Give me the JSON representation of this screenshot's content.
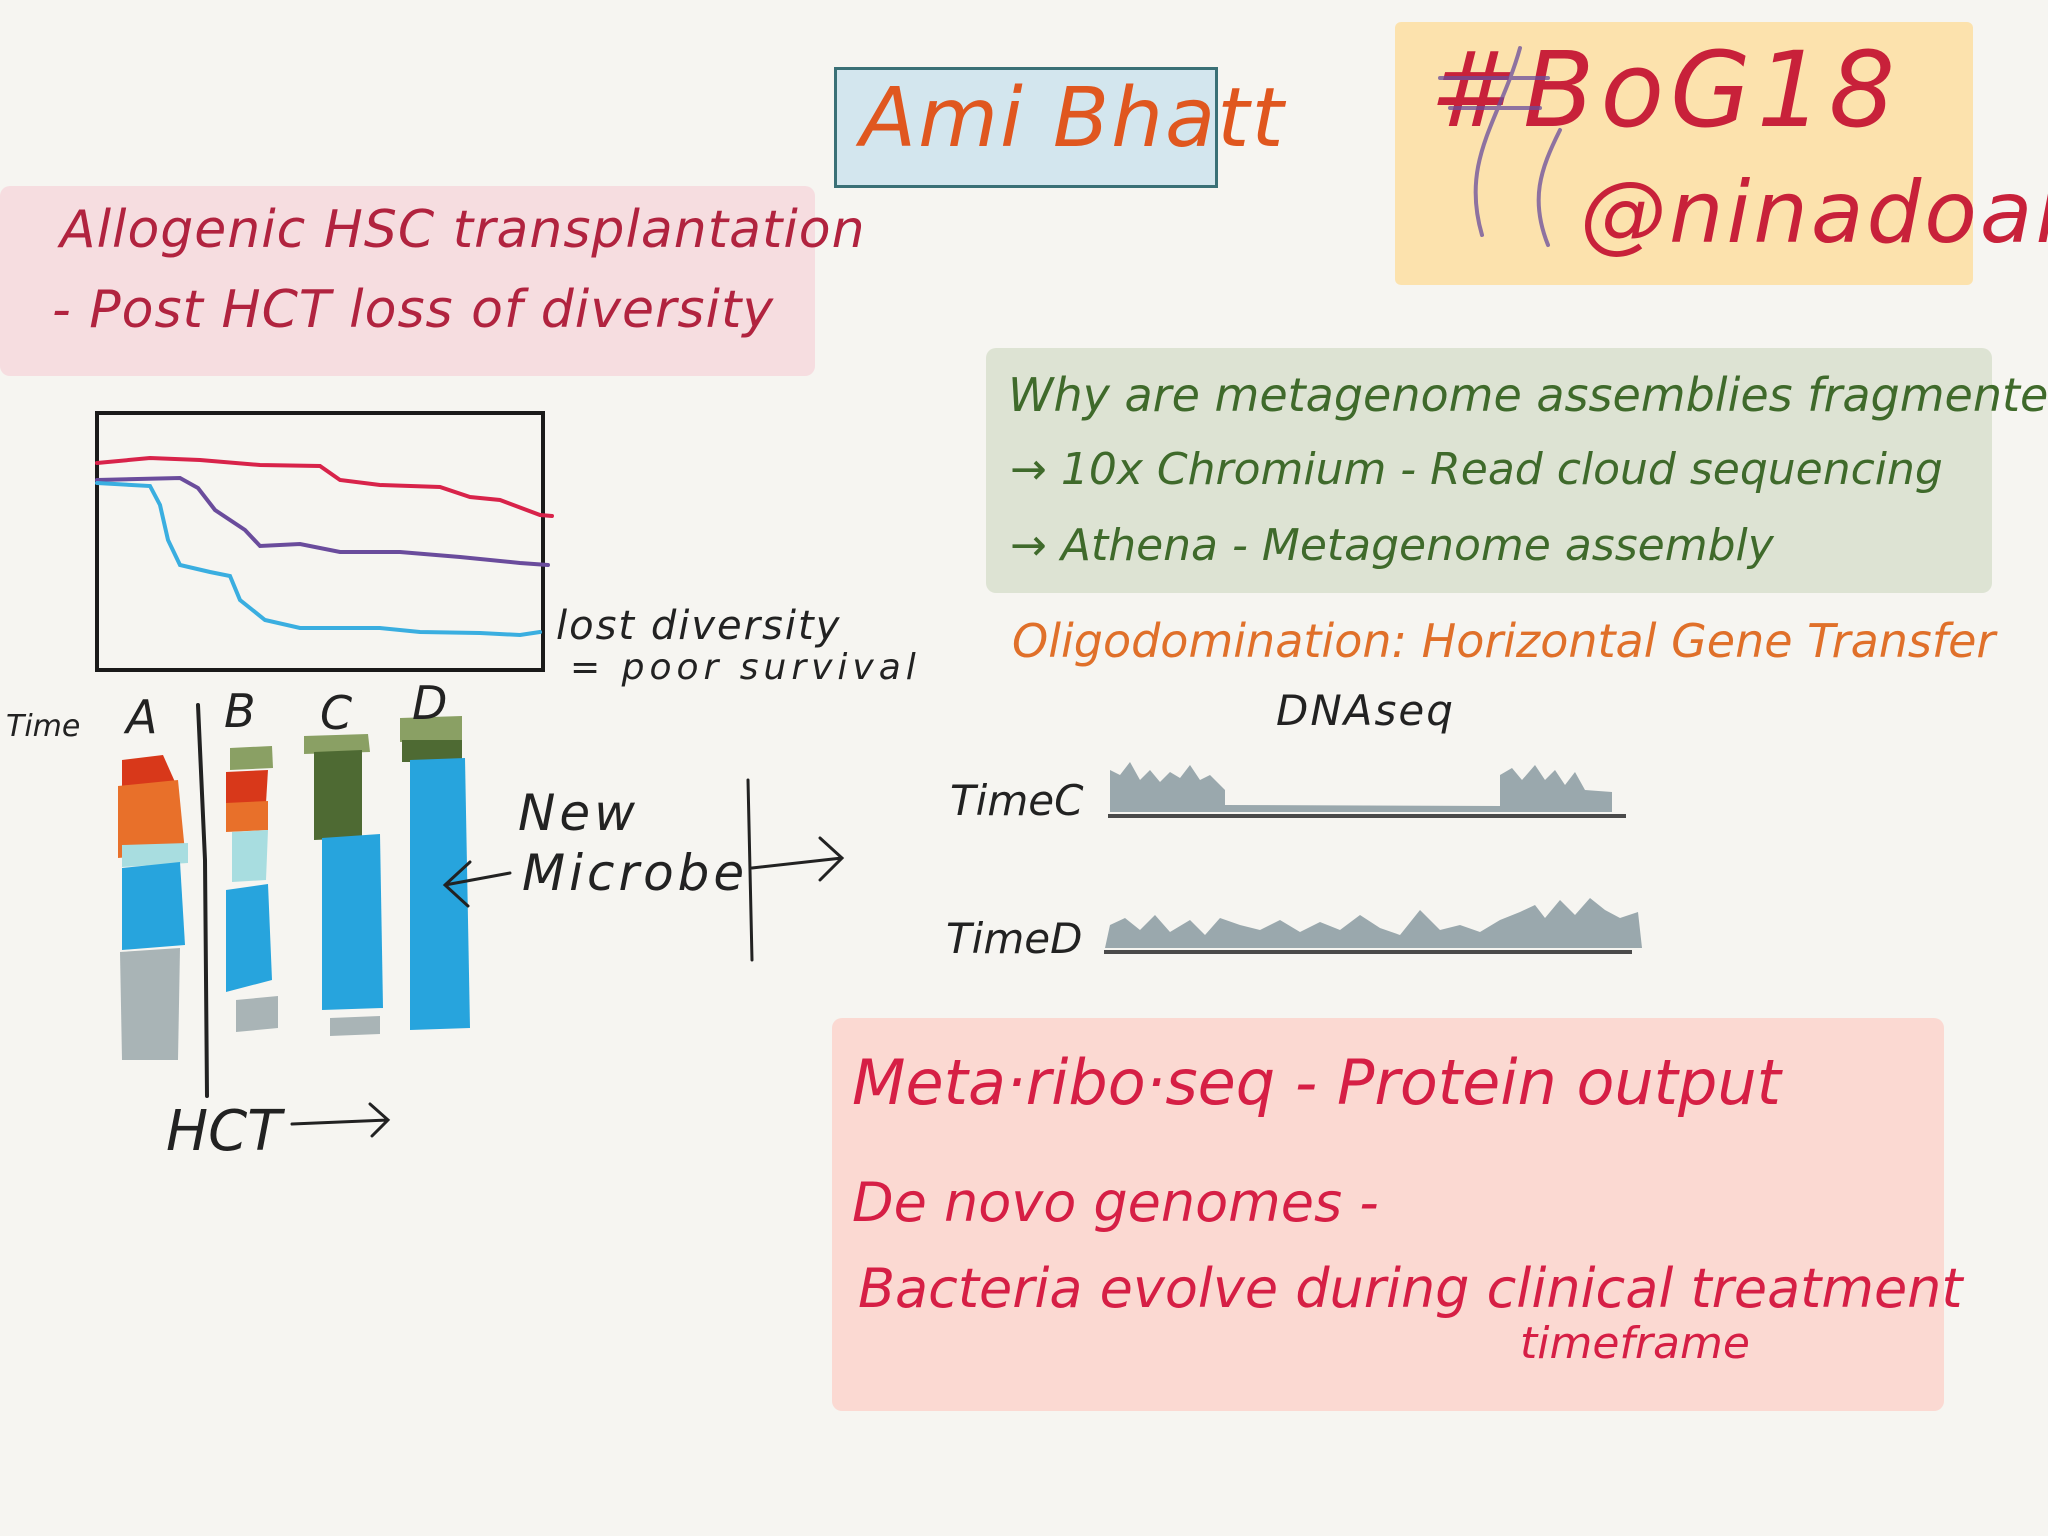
{
  "speaker": {
    "name": "Ami Bhatt"
  },
  "tag": {
    "hashtag": "#BoG18",
    "handle": "@ninadoak"
  },
  "intro": {
    "line1": "Allogenic HSC transplantation",
    "line2": "- Post HCT loss of diversity"
  },
  "diversity_chart": {
    "annotation_line1": "lost diversity",
    "annotation_line2": "= poor survival",
    "series_colors": [
      "#d8234a",
      "#6a4c9c",
      "#3aaee0"
    ]
  },
  "timepoints": {
    "axis_label": "Time",
    "labels": [
      "A",
      "B",
      "C",
      "D"
    ],
    "hct_label": "HCT",
    "new_microbe_line1": "New",
    "new_microbe_line2": "Microbe",
    "colors": {
      "orange": "#e8702a",
      "red": "#d8381a",
      "blue": "#27a4dd",
      "green": "#4e6a33",
      "olive": "#8aa064",
      "gray": "#a9b4b6",
      "lightblue": "#a8dde0"
    }
  },
  "metagenome": {
    "question": "Why are metagenome assemblies fragmented?",
    "item1": "→ 10x Chromium - Read cloud sequencing",
    "item2": "→ Athena - Metagenome assembly"
  },
  "oligo": {
    "title": "Oligodomination: Horizontal Gene Transfer"
  },
  "dnaseq": {
    "title": "DNAseq",
    "track1": "TimeC",
    "track2": "TimeD",
    "track_color": "#9aa8ad"
  },
  "ribo": {
    "line1": "Meta·ribo·seq - Protein output",
    "line2": "De novo genomes -",
    "line3": "Bacteria evolve during clinical treatment",
    "line4": "timeframe"
  }
}
